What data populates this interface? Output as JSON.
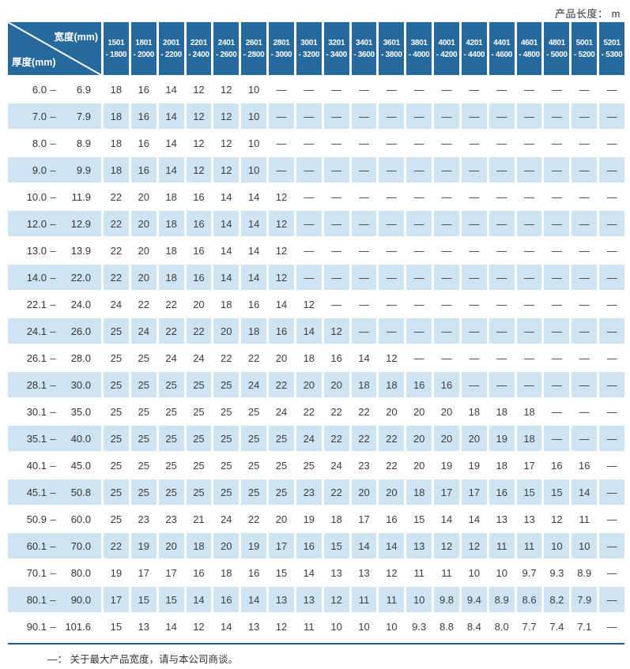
{
  "page": {
    "unit_note": "产品长度： m",
    "footnote": "—： 关于最大产品宽度，请与本公司商谈。"
  },
  "colors": {
    "header_blue": "#26699c",
    "row_stripe_blue": "#cfe4f2",
    "bottom_rule_blue": "#1d5a87",
    "value_text": "#3c3c3c"
  },
  "table": {
    "corner": {
      "width_axis_label": "宽度(mm)",
      "thickness_axis_label": "厚度(mm)"
    },
    "no_product_symbol": "—",
    "width_ranges": [
      {
        "line1": "1501",
        "line2": "- 1800"
      },
      {
        "line1": "1801",
        "line2": "- 2000"
      },
      {
        "line1": "2001",
        "line2": "- 2200"
      },
      {
        "line1": "2201",
        "line2": "- 2400"
      },
      {
        "line1": "2401",
        "line2": "- 2600"
      },
      {
        "line1": "2601",
        "line2": "- 2800"
      },
      {
        "line1": "2801",
        "line2": "- 3000"
      },
      {
        "line1": "3001",
        "line2": "- 3200"
      },
      {
        "line1": "3201",
        "line2": "- 3400"
      },
      {
        "line1": "3401",
        "line2": "- 3600"
      },
      {
        "line1": "3601",
        "line2": "- 3800"
      },
      {
        "line1": "3801",
        "line2": "- 4000"
      },
      {
        "line1": "4001",
        "line2": "- 4200"
      },
      {
        "line1": "4201",
        "line2": "- 4400"
      },
      {
        "line1": "4401",
        "line2": "- 4600"
      },
      {
        "line1": "4601",
        "line2": "- 4800"
      },
      {
        "line1": "4801",
        "line2": "- 5000"
      },
      {
        "line1": "5001",
        "line2": "- 5200"
      },
      {
        "line1": "5201",
        "line2": "- 5300"
      }
    ],
    "rows": [
      {
        "lo": "6.0",
        "hi": "6.9",
        "values": [
          "18",
          "16",
          "14",
          "12",
          "12",
          "10",
          "—",
          "—",
          "—",
          "—",
          "—",
          "—",
          "—",
          "—",
          "—",
          "—",
          "—",
          "—",
          "—"
        ]
      },
      {
        "lo": "7.0",
        "hi": "7.9",
        "values": [
          "18",
          "16",
          "14",
          "12",
          "12",
          "10",
          "—",
          "—",
          "—",
          "—",
          "—",
          "—",
          "—",
          "—",
          "—",
          "—",
          "—",
          "—",
          "—"
        ]
      },
      {
        "lo": "8.0",
        "hi": "8.9",
        "values": [
          "18",
          "16",
          "14",
          "12",
          "12",
          "10",
          "—",
          "—",
          "—",
          "—",
          "—",
          "—",
          "—",
          "—",
          "—",
          "—",
          "—",
          "—",
          "—"
        ]
      },
      {
        "lo": "9.0",
        "hi": "9.9",
        "values": [
          "18",
          "16",
          "14",
          "12",
          "12",
          "10",
          "—",
          "—",
          "—",
          "—",
          "—",
          "—",
          "—",
          "—",
          "—",
          "—",
          "—",
          "—",
          "—"
        ]
      },
      {
        "lo": "10.0",
        "hi": "11.9",
        "values": [
          "22",
          "20",
          "18",
          "16",
          "14",
          "14",
          "12",
          "—",
          "—",
          "—",
          "—",
          "—",
          "—",
          "—",
          "—",
          "—",
          "—",
          "—",
          "—"
        ]
      },
      {
        "lo": "12.0",
        "hi": "12.9",
        "values": [
          "22",
          "20",
          "18",
          "16",
          "14",
          "14",
          "12",
          "—",
          "—",
          "—",
          "—",
          "—",
          "—",
          "—",
          "—",
          "—",
          "—",
          "—",
          "—"
        ]
      },
      {
        "lo": "13.0",
        "hi": "13.9",
        "values": [
          "22",
          "20",
          "18",
          "16",
          "14",
          "14",
          "12",
          "—",
          "—",
          "—",
          "—",
          "—",
          "—",
          "—",
          "—",
          "—",
          "—",
          "—",
          "—"
        ]
      },
      {
        "lo": "14.0",
        "hi": "22.0",
        "values": [
          "22",
          "20",
          "18",
          "16",
          "14",
          "14",
          "12",
          "—",
          "—",
          "—",
          "—",
          "—",
          "—",
          "—",
          "—",
          "—",
          "—",
          "—",
          "—"
        ]
      },
      {
        "lo": "22.1",
        "hi": "24.0",
        "values": [
          "24",
          "22",
          "22",
          "20",
          "18",
          "16",
          "14",
          "12",
          "—",
          "—",
          "—",
          "—",
          "—",
          "—",
          "—",
          "—",
          "—",
          "—",
          "—"
        ]
      },
      {
        "lo": "24.1",
        "hi": "26.0",
        "values": [
          "25",
          "24",
          "22",
          "22",
          "20",
          "18",
          "16",
          "14",
          "12",
          "—",
          "—",
          "—",
          "—",
          "—",
          "—",
          "—",
          "—",
          "—",
          "—"
        ]
      },
      {
        "lo": "26.1",
        "hi": "28.0",
        "values": [
          "25",
          "25",
          "24",
          "24",
          "22",
          "22",
          "20",
          "18",
          "16",
          "14",
          "12",
          "—",
          "—",
          "—",
          "—",
          "—",
          "—",
          "—",
          "—"
        ]
      },
      {
        "lo": "28.1",
        "hi": "30.0",
        "values": [
          "25",
          "25",
          "25",
          "25",
          "25",
          "24",
          "22",
          "20",
          "20",
          "18",
          "18",
          "16",
          "16",
          "—",
          "—",
          "—",
          "—",
          "—",
          "—"
        ]
      },
      {
        "lo": "30.1",
        "hi": "35.0",
        "values": [
          "25",
          "25",
          "25",
          "25",
          "25",
          "25",
          "24",
          "22",
          "22",
          "22",
          "20",
          "20",
          "20",
          "18",
          "18",
          "18",
          "—",
          "—",
          "—"
        ]
      },
      {
        "lo": "35.1",
        "hi": "40.0",
        "values": [
          "25",
          "25",
          "25",
          "25",
          "25",
          "25",
          "25",
          "24",
          "22",
          "22",
          "22",
          "20",
          "20",
          "20",
          "19",
          "18",
          "—",
          "—",
          "—"
        ]
      },
      {
        "lo": "40.1",
        "hi": "45.0",
        "values": [
          "25",
          "25",
          "25",
          "25",
          "25",
          "25",
          "25",
          "25",
          "24",
          "23",
          "22",
          "20",
          "19",
          "19",
          "18",
          "17",
          "16",
          "16",
          "—"
        ]
      },
      {
        "lo": "45.1",
        "hi": "50.8",
        "values": [
          "25",
          "25",
          "25",
          "25",
          "25",
          "25",
          "25",
          "23",
          "22",
          "20",
          "20",
          "18",
          "17",
          "17",
          "16",
          "15",
          "15",
          "14",
          "—"
        ]
      },
      {
        "lo": "50.9",
        "hi": "60.0",
        "values": [
          "25",
          "23",
          "23",
          "21",
          "24",
          "22",
          "20",
          "19",
          "18",
          "17",
          "16",
          "15",
          "14",
          "14",
          "13",
          "13",
          "12",
          "11",
          "—"
        ]
      },
      {
        "lo": "60.1",
        "hi": "70.0",
        "values": [
          "22",
          "19",
          "20",
          "18",
          "20",
          "19",
          "17",
          "16",
          "15",
          "14",
          "14",
          "13",
          "12",
          "12",
          "11",
          "11",
          "10",
          "10",
          "—"
        ]
      },
      {
        "lo": "70.1",
        "hi": "80.0",
        "values": [
          "19",
          "17",
          "17",
          "16",
          "18",
          "16",
          "15",
          "14",
          "13",
          "13",
          "12",
          "11",
          "11",
          "10",
          "10",
          "9.7",
          "9.3",
          "8.9",
          "—"
        ]
      },
      {
        "lo": "80.1",
        "hi": "90.0",
        "values": [
          "17",
          "15",
          "15",
          "14",
          "16",
          "14",
          "13",
          "13",
          "12",
          "11",
          "11",
          "10",
          "9.8",
          "9.4",
          "8.9",
          "8.6",
          "8.2",
          "7.9",
          "—"
        ]
      },
      {
        "lo": "90.1",
        "hi": "101.6",
        "values": [
          "15",
          "13",
          "14",
          "12",
          "14",
          "13",
          "12",
          "11",
          "10",
          "10",
          "10",
          "9.3",
          "8.8",
          "8.4",
          "8.0",
          "7.7",
          "7.4",
          "7.1",
          "—"
        ]
      }
    ]
  }
}
